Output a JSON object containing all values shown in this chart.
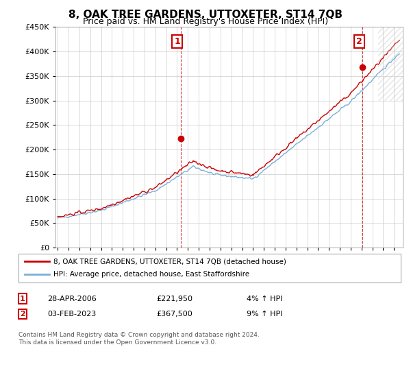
{
  "title": "8, OAK TREE GARDENS, UTTOXETER, ST14 7QB",
  "subtitle": "Price paid vs. HM Land Registry's House Price Index (HPI)",
  "legend_line1": "8, OAK TREE GARDENS, UTTOXETER, ST14 7QB (detached house)",
  "legend_line2": "HPI: Average price, detached house, East Staffordshire",
  "annotation1_label": "1",
  "annotation1_date": "28-APR-2006",
  "annotation1_price": "£221,950",
  "annotation1_hpi": "4% ↑ HPI",
  "annotation2_label": "2",
  "annotation2_date": "03-FEB-2023",
  "annotation2_price": "£367,500",
  "annotation2_hpi": "9% ↑ HPI",
  "footer": "Contains HM Land Registry data © Crown copyright and database right 2024.\nThis data is licensed under the Open Government Licence v3.0.",
  "hpi_color": "#7ab0d8",
  "price_color": "#cc0000",
  "annotation_color": "#cc0000",
  "background_color": "#ffffff",
  "grid_color": "#cccccc",
  "ylim": [
    0,
    450000
  ],
  "yticks": [
    0,
    50000,
    100000,
    150000,
    200000,
    250000,
    300000,
    350000,
    400000,
    450000
  ],
  "sale1_x": 2006.32,
  "sale1_y": 221950,
  "sale2_x": 2023.08,
  "sale2_y": 367500,
  "xlim_left": 1994.8,
  "xlim_right": 2026.8
}
